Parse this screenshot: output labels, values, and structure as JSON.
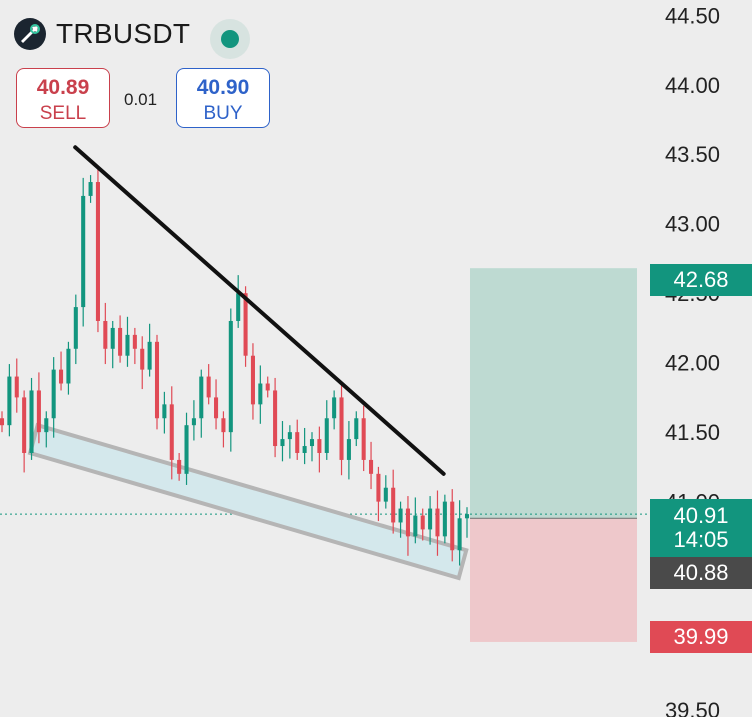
{
  "header": {
    "symbol": "TRBUSDT",
    "sell_price": "40.89",
    "sell_label": "SELL",
    "spread": "0.01",
    "buy_price": "40.90",
    "buy_label": "BUY"
  },
  "icons": {
    "logo": "tellor-logo-icon",
    "status": "market-open-dot-icon"
  },
  "colors": {
    "up": "#12957e",
    "down": "#e04a55",
    "target_zone": "#bcd9d1",
    "stop_zone": "#eec6c9",
    "channel_fill": "#d4e8ec",
    "channel_border": "#b5b5b5",
    "trendline": "#111111"
  },
  "price_tags": {
    "take_profit": "42.68",
    "current_price": "40.91",
    "countdown": "14:05",
    "entry": "40.88",
    "stop_loss": "39.99"
  },
  "chart_data": {
    "type": "candlestick",
    "title": "",
    "xlabel": "",
    "ylabel": "",
    "ylim": [
      39.45,
      44.61
    ],
    "yticks": [
      "44.50",
      "44.00",
      "43.50",
      "43.00",
      "42.50",
      "42.00",
      "41.50",
      "41.00",
      "39.50"
    ],
    "grid": false,
    "close_series": [
      41.55,
      41.9,
      41.75,
      41.35,
      41.8,
      41.5,
      41.6,
      41.95,
      41.85,
      42.1,
      42.4,
      43.2,
      43.3,
      42.3,
      42.1,
      42.25,
      42.05,
      42.2,
      42.1,
      41.95,
      42.15,
      41.6,
      41.7,
      41.3,
      41.2,
      41.55,
      41.6,
      41.9,
      41.75,
      41.6,
      41.5,
      42.3,
      42.5,
      42.05,
      41.7,
      41.85,
      41.8,
      41.4,
      41.45,
      41.5,
      41.35,
      41.4,
      41.45,
      41.35,
      41.6,
      41.75,
      41.3,
      41.45,
      41.6,
      41.3,
      41.2,
      41.0,
      41.1,
      40.85,
      40.95,
      40.75,
      40.9,
      40.8,
      40.95,
      40.75,
      41.0,
      40.65,
      40.88,
      40.91
    ],
    "annotations": [
      {
        "type": "trendline",
        "from": [
          0.1,
          43.55
        ],
        "to": [
          0.59,
          41.2
        ]
      },
      {
        "type": "channel",
        "upper_from": [
          0.05,
          41.55
        ],
        "upper_to": [
          0.62,
          40.65
        ],
        "lower_from": [
          0.04,
          41.35
        ],
        "lower_to": [
          0.61,
          40.45
        ]
      },
      {
        "type": "long_position",
        "entry": 40.88,
        "take_profit": 42.68,
        "stop_loss": 39.99
      }
    ]
  }
}
